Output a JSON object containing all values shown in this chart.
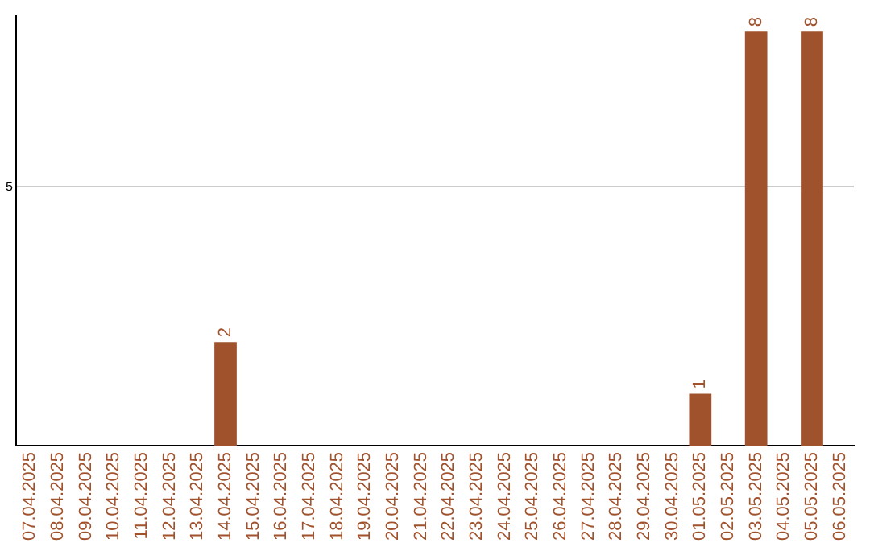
{
  "chart_data": {
    "type": "bar",
    "categories": [
      "07.04.2025",
      "08.04.2025",
      "09.04.2025",
      "10.04.2025",
      "11.04.2025",
      "12.04.2025",
      "13.04.2025",
      "14.04.2025",
      "15.04.2025",
      "16.04.2025",
      "17.04.2025",
      "18.04.2025",
      "19.04.2025",
      "20.04.2025",
      "21.04.2025",
      "22.04.2025",
      "23.04.2025",
      "24.04.2025",
      "25.04.2025",
      "26.04.2025",
      "27.04.2025",
      "28.04.2025",
      "29.04.2025",
      "30.04.2025",
      "01.05.2025",
      "02.05.2025",
      "03.05.2025",
      "04.05.2025",
      "05.05.2025",
      "06.05.2025"
    ],
    "values": [
      0,
      0,
      0,
      0,
      0,
      0,
      0,
      2,
      0,
      0,
      0,
      0,
      0,
      0,
      0,
      0,
      0,
      0,
      0,
      0,
      0,
      0,
      0,
      0,
      1,
      0,
      8,
      0,
      8,
      0
    ],
    "value_labels": [
      null,
      null,
      null,
      null,
      null,
      null,
      null,
      "2",
      null,
      null,
      null,
      null,
      null,
      null,
      null,
      null,
      null,
      null,
      null,
      null,
      null,
      null,
      null,
      null,
      "1",
      null,
      "8",
      null,
      "8",
      null
    ],
    "color": "#a0522d",
    "ylim": [
      0,
      8.3
    ],
    "yticks": [
      5
    ],
    "grid": "y",
    "legend": false
  }
}
